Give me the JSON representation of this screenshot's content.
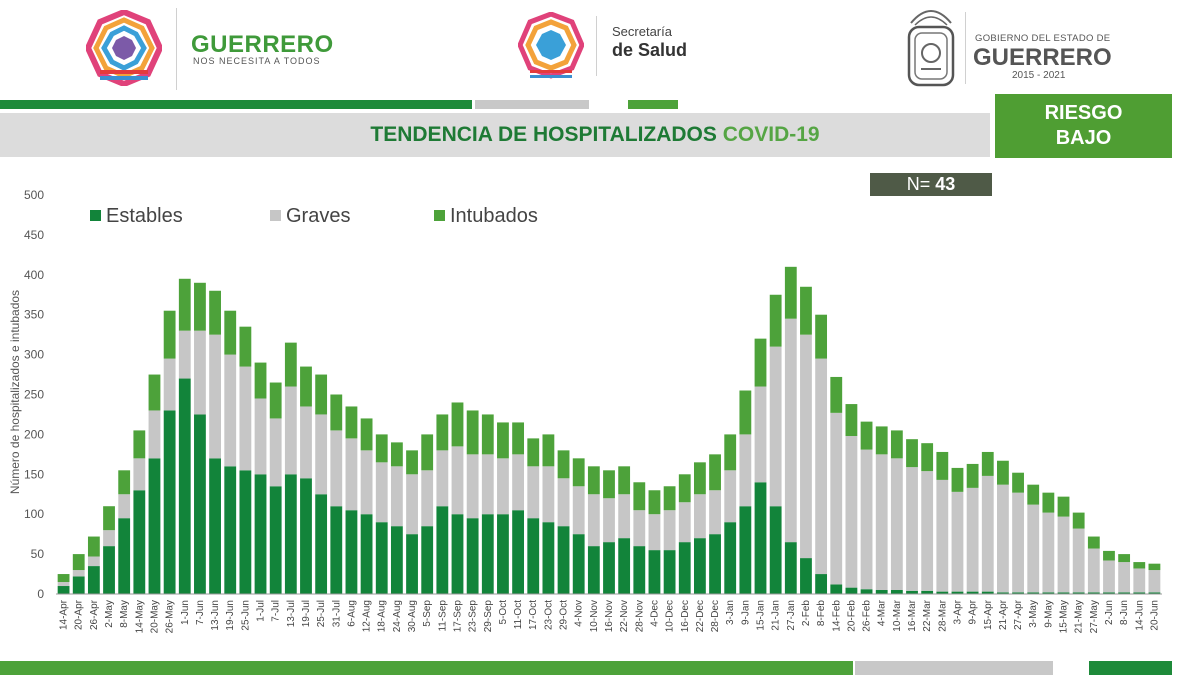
{
  "header": {
    "left_brand": {
      "title": "GUERRERO",
      "subtitle": "NOS NECESITA A TODOS"
    },
    "center_brand": {
      "line1": "Secretaría",
      "line2": "de Salud"
    },
    "right_brand": {
      "line1": "GOBIERNO DEL ESTADO DE",
      "line2": "GUERRERO",
      "line3": "2015 - 2021"
    }
  },
  "title": {
    "main": "TENDENCIA DE HOSPITALIZADOS ",
    "accent": "COVID-19"
  },
  "risk": {
    "line1": "RIESGO",
    "line2": "BAJO"
  },
  "n_label": {
    "prefix": "N= ",
    "value": "43"
  },
  "colors": {
    "estables": "#12843a",
    "graves": "#c6c6c6",
    "intubados": "#4da23a",
    "band_dark": "#1e8a3a",
    "band_gray": "#c8c8c8"
  },
  "chart_data": {
    "type": "bar",
    "stacked": true,
    "ylabel": "Número de hospitalizados e intubados",
    "ylim": [
      0,
      500
    ],
    "yticks": [
      0,
      50,
      100,
      150,
      200,
      250,
      300,
      350,
      400,
      450,
      500
    ],
    "legend": [
      "Estables",
      "Graves",
      "Intubados"
    ],
    "legend_position": "top-left",
    "x_tick_labels": [
      "14-Apr",
      "20-Apr",
      "26-Apr",
      "2-May",
      "8-May",
      "14-May",
      "20-May",
      "26-May",
      "1-Jun",
      "7-Jun",
      "13-Jun",
      "19-Jun",
      "25-Jun",
      "1-Jul",
      "7-Jul",
      "13-Jul",
      "19-Jul",
      "25-Jul",
      "31-Jul",
      "6-Aug",
      "12-Aug",
      "18-Aug",
      "24-Aug",
      "30-Aug",
      "5-Sep",
      "11-Sep",
      "17-Sep",
      "23-Sep",
      "29-Sep",
      "5-Oct",
      "11-Oct",
      "17-Oct",
      "23-Oct",
      "29-Oct",
      "4-Nov",
      "10-Nov",
      "16-Nov",
      "22-Nov",
      "28-Nov",
      "4-Dec",
      "10-Dec",
      "16-Dec",
      "22-Dec",
      "28-Dec",
      "3-Jan",
      "9-Jan",
      "15-Jan",
      "21-Jan",
      "27-Jan",
      "2-Feb",
      "8-Feb",
      "14-Feb",
      "20-Feb",
      "26-Feb",
      "4-Mar",
      "10-Mar",
      "16-Mar",
      "22-Mar",
      "28-Mar",
      "3-Apr",
      "9-Apr",
      "15-Apr",
      "21-Apr",
      "27-Apr",
      "3-May",
      "9-May",
      "15-May",
      "21-May",
      "27-May",
      "2-Jun",
      "8-Jun",
      "14-Jun",
      "20-Jun"
    ],
    "series": [
      {
        "name": "Estables",
        "values": [
          10,
          22,
          35,
          60,
          95,
          130,
          170,
          230,
          270,
          225,
          170,
          160,
          155,
          150,
          135,
          150,
          145,
          125,
          110,
          105,
          100,
          90,
          85,
          75,
          85,
          110,
          100,
          95,
          100,
          100,
          105,
          95,
          90,
          85,
          75,
          60,
          65,
          70,
          60,
          55,
          55,
          65,
          70,
          75,
          90,
          110,
          140,
          110,
          65,
          45,
          25,
          12,
          8,
          6,
          5,
          5,
          4,
          4,
          3,
          3,
          3,
          3,
          2,
          2,
          2,
          2,
          2,
          2,
          2,
          2,
          2,
          2,
          2
        ]
      },
      {
        "name": "Graves",
        "values": [
          5,
          8,
          12,
          20,
          30,
          40,
          60,
          65,
          60,
          105,
          155,
          140,
          130,
          95,
          85,
          110,
          90,
          100,
          95,
          90,
          80,
          75,
          75,
          75,
          70,
          70,
          85,
          80,
          75,
          70,
          70,
          65,
          70,
          60,
          60,
          65,
          55,
          55,
          45,
          45,
          50,
          50,
          55,
          55,
          65,
          90,
          120,
          200,
          280,
          280,
          270,
          215,
          190,
          175,
          170,
          165,
          155,
          150,
          140,
          125,
          130,
          145,
          135,
          125,
          110,
          100,
          95,
          80,
          55,
          40,
          38,
          30,
          28
        ]
      },
      {
        "name": "Intubados",
        "values": [
          10,
          20,
          25,
          30,
          30,
          35,
          45,
          60,
          65,
          60,
          55,
          55,
          50,
          45,
          45,
          55,
          50,
          50,
          45,
          40,
          40,
          35,
          30,
          30,
          45,
          45,
          55,
          55,
          50,
          45,
          40,
          35,
          40,
          35,
          35,
          35,
          35,
          35,
          35,
          30,
          30,
          35,
          40,
          45,
          45,
          55,
          60,
          65,
          65,
          60,
          55,
          45,
          40,
          35,
          35,
          35,
          35,
          35,
          35,
          30,
          30,
          30,
          30,
          25,
          25,
          25,
          25,
          20,
          15,
          12,
          10,
          8,
          8
        ]
      }
    ]
  }
}
